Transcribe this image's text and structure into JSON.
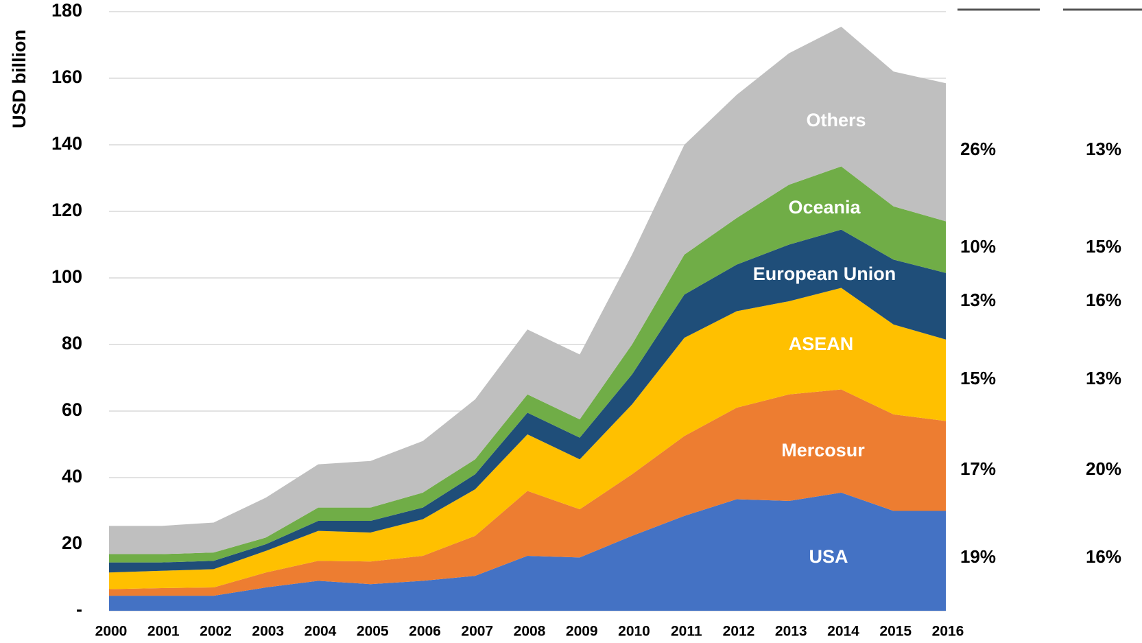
{
  "chart_data": {
    "type": "stacked_area",
    "y_axis_label": "USD billion",
    "categories": [
      "2000",
      "2001",
      "2002",
      "2003",
      "2004",
      "2005",
      "2006",
      "2007",
      "2008",
      "2009",
      "2010",
      "2011",
      "2012",
      "2013",
      "2014",
      "2015",
      "2016"
    ],
    "series": [
      {
        "name": "USA",
        "color": "#4472c4",
        "values": [
          4.5,
          4.5,
          4.5,
          7,
          9,
          8,
          9,
          10.5,
          16.5,
          16,
          22.5,
          28.5,
          33.5,
          33,
          35.5,
          30,
          30
        ]
      },
      {
        "name": "Mercosur",
        "color": "#ed7d31",
        "values": [
          2,
          2.3,
          2.5,
          4.5,
          6,
          6.8,
          7.5,
          12,
          19.5,
          14.5,
          18.5,
          24,
          27.5,
          32,
          31,
          29,
          27
        ]
      },
      {
        "name": "ASEAN",
        "color": "#ffc000",
        "values": [
          5,
          5.2,
          5.5,
          6.5,
          9,
          8.7,
          11,
          14,
          17,
          15,
          21,
          29.5,
          29,
          28,
          30.5,
          27,
          24.5
        ]
      },
      {
        "name": "European Union",
        "color": "#1f4e79",
        "values": [
          3,
          2.5,
          2.5,
          2,
          3,
          3.5,
          3.5,
          4.5,
          6.5,
          6.5,
          9,
          13,
          14,
          17,
          17.5,
          19.5,
          20
        ]
      },
      {
        "name": "Oceania",
        "color": "#70ad47",
        "values": [
          2.5,
          2.5,
          2.5,
          2,
          4,
          4,
          4.5,
          4.5,
          5.5,
          5.5,
          9,
          12,
          14,
          18,
          19,
          16,
          15.5
        ]
      },
      {
        "name": "Others",
        "color": "#bfbfbf",
        "values": [
          8.5,
          8.5,
          9,
          12,
          13,
          14,
          15.5,
          18,
          19.5,
          19.5,
          27,
          33,
          37,
          39.5,
          42,
          40.5,
          41.5
        ]
      }
    ],
    "ylim": [
      0,
      180
    ],
    "yticks": [
      {
        "value": 0,
        "label": "-"
      },
      20,
      40,
      60,
      80,
      100,
      120,
      140,
      160,
      180
    ],
    "grid": true,
    "annotations": {
      "columns": [
        [
          "26%",
          "10%",
          "13%",
          "15%",
          "17%",
          "19%"
        ],
        [
          "13%",
          "15%",
          "16%",
          "13%",
          "20%",
          "16%"
        ]
      ]
    }
  }
}
